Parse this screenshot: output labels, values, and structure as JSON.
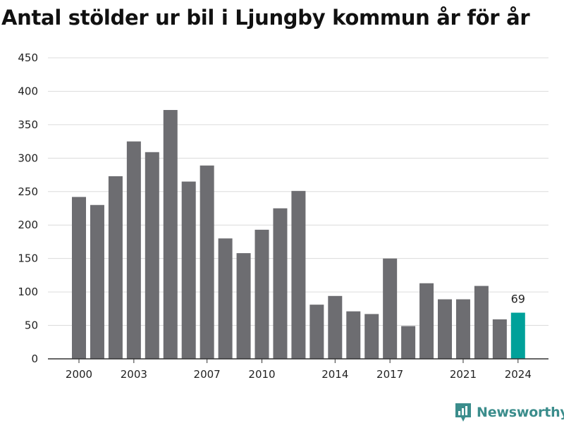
{
  "chart_data": {
    "type": "bar",
    "title": "Antal stölder ur bil i Ljungby kommun år för år",
    "xlabel": "",
    "ylabel": "",
    "categories": [
      "2000",
      "2001",
      "2002",
      "2003",
      "2004",
      "2005",
      "2006",
      "2007",
      "2008",
      "2009",
      "2010",
      "2011",
      "2012",
      "2013",
      "2014",
      "2015",
      "2016",
      "2017",
      "2018",
      "2019",
      "2020",
      "2021",
      "2022",
      "2023",
      "2024"
    ],
    "values": [
      242,
      230,
      273,
      325,
      309,
      372,
      265,
      289,
      180,
      158,
      193,
      225,
      251,
      81,
      94,
      71,
      67,
      150,
      49,
      113,
      89,
      89,
      109,
      59,
      69
    ],
    "ylim": [
      0,
      450
    ],
    "yticks": [
      "0",
      "50",
      "100",
      "150",
      "200",
      "250",
      "300",
      "350",
      "400",
      "450"
    ],
    "xticks": [
      "2000",
      "2003",
      "2007",
      "2010",
      "2014",
      "2017",
      "2021",
      "2024"
    ],
    "grid": true,
    "colors": {
      "bar": "#6d6d71",
      "highlight": "#00a19a",
      "grid": "#dcdcdc",
      "axis": "#333333"
    },
    "highlight": {
      "category": "2024",
      "label": "69"
    }
  },
  "brand": {
    "name": "Newsworthy",
    "icon": "newsworthy-logo-icon",
    "color": "#3b8d8c"
  }
}
